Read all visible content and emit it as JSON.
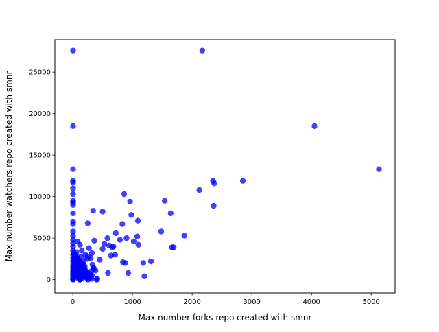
{
  "chart_data": {
    "type": "scatter",
    "title": "",
    "xlabel": "Max number forks repo created with smnr",
    "ylabel": "Max number watchers repo created with smnr",
    "xlim": [
      -300,
      5400
    ],
    "ylim": [
      -1600,
      28900
    ],
    "xticks": [
      0,
      1000,
      2000,
      3000,
      4000,
      5000
    ],
    "yticks": [
      0,
      5000,
      10000,
      15000,
      20000,
      25000
    ],
    "xtick_labels": [
      "0",
      "1000",
      "2000",
      "3000",
      "4000",
      "5000"
    ],
    "ytick_labels": [
      "0",
      "5000",
      "10000",
      "15000",
      "20000",
      "25000"
    ],
    "grid": false,
    "legend": "none",
    "marker_color": "#0000ff",
    "marker_alpha": 0.75,
    "series": [
      {
        "x": [
          5,
          2170,
          5,
          4050,
          5,
          5130,
          5,
          2850,
          2370,
          2360,
          2120,
          5,
          5,
          5,
          5,
          5,
          5,
          5,
          5,
          5,
          5,
          5,
          5,
          5,
          5,
          5,
          5,
          5,
          5,
          5,
          5,
          5,
          5,
          5,
          5,
          5,
          5,
          5,
          5,
          5,
          5,
          860,
          1640,
          2350,
          1540,
          960,
          1660,
          340,
          500,
          980,
          1090,
          1480,
          1870,
          1690,
          830,
          250,
          1080,
          720,
          900,
          790,
          1020,
          610,
          660,
          580,
          1100,
          530,
          680,
          360,
          500,
          1180,
          840,
          1310,
          880,
          710,
          640,
          930,
          1200,
          400,
          410,
          590,
          150,
          250,
          320,
          120,
          300,
          80,
          450,
          210,
          180,
          330,
          270,
          90,
          140,
          60,
          200,
          350,
          240,
          110,
          170,
          380,
          230,
          120,
          280,
          160,
          70,
          40,
          320,
          190,
          100,
          260,
          50,
          30,
          150,
          220,
          90,
          130,
          60,
          180,
          20,
          80,
          310,
          140,
          240,
          110,
          70,
          200,
          40,
          160,
          90,
          350,
          25,
          120,
          210,
          60,
          170,
          15,
          100,
          280,
          45,
          130,
          10,
          35,
          55,
          75,
          95,
          115,
          135,
          155,
          175,
          195,
          215,
          235,
          255,
          275,
          295,
          315,
          15,
          35,
          55,
          75,
          95,
          115,
          135,
          155,
          175,
          195,
          215,
          235,
          255,
          275,
          20,
          40,
          60,
          80,
          100,
          120,
          140,
          160,
          180,
          200
        ],
        "y": [
          27600,
          27600,
          18500,
          18500,
          13300,
          13300,
          11900,
          11900,
          11600,
          8900,
          10800,
          11700,
          11000,
          10300,
          9500,
          9300,
          9000,
          8000,
          7000,
          6700,
          5800,
          5300,
          4800,
          4400,
          4000,
          3500,
          3000,
          2600,
          2200,
          1800,
          1500,
          1200,
          900,
          600,
          400,
          200,
          100,
          50,
          0,
          700,
          1000,
          10300,
          8000,
          11900,
          9500,
          9400,
          3900,
          8300,
          8200,
          7800,
          7100,
          5800,
          5300,
          3900,
          6700,
          6800,
          5200,
          5600,
          5000,
          4800,
          4600,
          4100,
          3900,
          5000,
          4200,
          4300,
          4000,
          4700,
          3700,
          2000,
          2100,
          2200,
          2000,
          3000,
          2900,
          800,
          400,
          0,
          100,
          800,
          3500,
          2800,
          3200,
          4200,
          2600,
          4600,
          2400,
          3000,
          2200,
          1800,
          3800,
          2000,
          2700,
          3300,
          1600,
          1400,
          2500,
          1200,
          1900,
          1100,
          900,
          2100,
          700,
          1500,
          2400,
          3000,
          500,
          1300,
          1700,
          300,
          1900,
          2600,
          1000,
          600,
          1400,
          800,
          2200,
          400,
          1600,
          1100,
          1000,
          1800,
          600,
          2300,
          2800,
          800,
          1200,
          200,
          500,
          1300,
          2000,
          0,
          300,
          700,
          1500,
          1100,
          100,
          500,
          900,
          600,
          3200,
          2900,
          2700,
          2500,
          2300,
          2100,
          1900,
          1700,
          1500,
          1300,
          1100,
          900,
          700,
          500,
          300,
          100,
          2400,
          2200,
          2000,
          1800,
          1600,
          1400,
          1200,
          1000,
          800,
          600,
          400,
          200,
          0,
          200,
          1000,
          800,
          600,
          400,
          200,
          0,
          300,
          500,
          700,
          900
        ]
      }
    ]
  }
}
